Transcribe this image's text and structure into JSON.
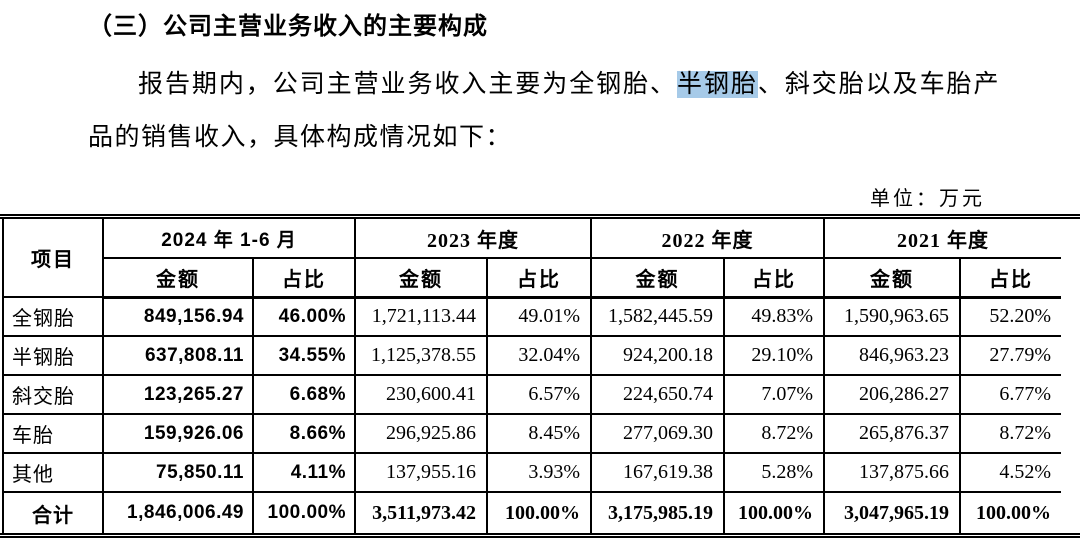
{
  "page": {
    "heading": "（三）公司主营业务收入的主要构成",
    "paragraph": {
      "before_highlight": "报告期内，公司主营业务收入主要为全钢胎、",
      "highlight": "半钢胎",
      "after_highlight": "、斜交胎以及车胎产品的销售收入，具体构成情况如下："
    },
    "unit_label": "单位：万元",
    "highlight_color": "#a6cae8"
  },
  "table": {
    "item_header": "项目",
    "period_headers": [
      "2024 年 1-6 月",
      "2023 年度",
      "2022 年度",
      "2021 年度"
    ],
    "sub_headers": [
      "金额",
      "占比"
    ],
    "rows": [
      {
        "item": "全钢胎",
        "cells": [
          "849,156.94",
          "46.00%",
          "1,721,113.44",
          "49.01%",
          "1,582,445.59",
          "49.83%",
          "1,590,963.65",
          "52.20%"
        ]
      },
      {
        "item": "半钢胎",
        "cells": [
          "637,808.11",
          "34.55%",
          "1,125,378.55",
          "32.04%",
          "924,200.18",
          "29.10%",
          "846,963.23",
          "27.79%"
        ]
      },
      {
        "item": "斜交胎",
        "cells": [
          "123,265.27",
          "6.68%",
          "230,600.41",
          "6.57%",
          "224,650.74",
          "7.07%",
          "206,286.27",
          "6.77%"
        ]
      },
      {
        "item": "车胎",
        "cells": [
          "159,926.06",
          "8.66%",
          "296,925.86",
          "8.45%",
          "277,069.30",
          "8.72%",
          "265,876.37",
          "8.72%"
        ]
      },
      {
        "item": "其他",
        "cells": [
          "75,850.11",
          "4.11%",
          "137,955.16",
          "3.93%",
          "167,619.38",
          "5.28%",
          "137,875.66",
          "4.52%"
        ]
      },
      {
        "item": "合计",
        "total": true,
        "cells": [
          "1,846,006.49",
          "100.00%",
          "3,511,973.42",
          "100.00%",
          "3,175,985.19",
          "100.00%",
          "3,047,965.19",
          "100.00%"
        ]
      }
    ]
  }
}
